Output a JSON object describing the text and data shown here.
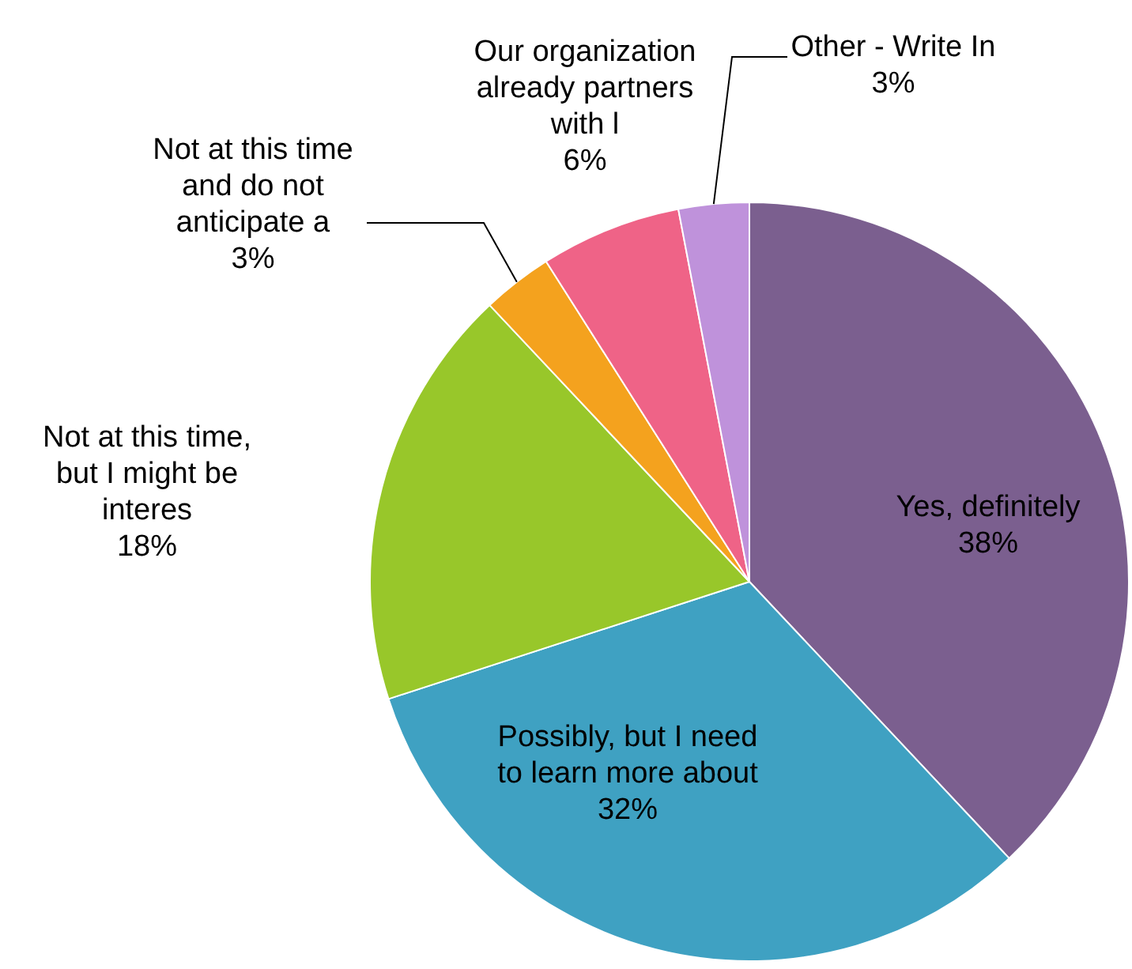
{
  "chart_data": {
    "type": "pie",
    "categories": [
      "Yes, definitely",
      "Possibly, but I need to learn more about",
      "Not at this time, but I might be interes",
      "Not at this time and do not anticipate a",
      "Our organization already partners with l",
      "Other - Write In"
    ],
    "values": [
      38,
      32,
      18,
      3,
      6,
      3
    ],
    "value_labels": [
      "38%",
      "32%",
      "18%",
      "3%",
      "6%",
      "3%"
    ],
    "colors": [
      "#7b5f8f",
      "#3fa1c2",
      "#98c72a",
      "#f4a21e",
      "#ef6387",
      "#bf92db"
    ]
  }
}
